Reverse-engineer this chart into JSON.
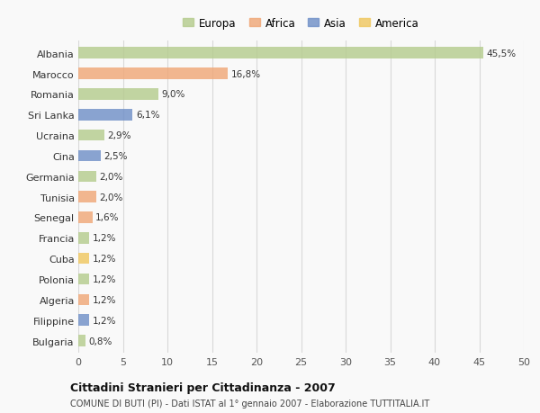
{
  "countries": [
    "Albania",
    "Marocco",
    "Romania",
    "Sri Lanka",
    "Ucraina",
    "Cina",
    "Germania",
    "Tunisia",
    "Senegal",
    "Francia",
    "Cuba",
    "Polonia",
    "Algeria",
    "Filippine",
    "Bulgaria"
  ],
  "values": [
    45.5,
    16.8,
    9.0,
    6.1,
    2.9,
    2.5,
    2.0,
    2.0,
    1.6,
    1.2,
    1.2,
    1.2,
    1.2,
    1.2,
    0.8
  ],
  "labels": [
    "45,5%",
    "16,8%",
    "9,0%",
    "6,1%",
    "2,9%",
    "2,5%",
    "2,0%",
    "2,0%",
    "1,6%",
    "1,2%",
    "1,2%",
    "1,2%",
    "1,2%",
    "1,2%",
    "0,8%"
  ],
  "colors": [
    "#b5cc8e",
    "#f0a878",
    "#b5cc8e",
    "#7090c8",
    "#b5cc8e",
    "#7090c8",
    "#b5cc8e",
    "#f0a878",
    "#f0a878",
    "#b5cc8e",
    "#f0c860",
    "#b5cc8e",
    "#f0a878",
    "#7090c8",
    "#b5cc8e"
  ],
  "legend": [
    {
      "label": "Europa",
      "color": "#b5cc8e"
    },
    {
      "label": "Africa",
      "color": "#f0a878"
    },
    {
      "label": "Asia",
      "color": "#7090c8"
    },
    {
      "label": "America",
      "color": "#f0c860"
    }
  ],
  "title": "Cittadini Stranieri per Cittadinanza - 2007",
  "subtitle": "COMUNE DI BUTI (PI) - Dati ISTAT al 1° gennaio 2007 - Elaborazione TUTTITALIA.IT",
  "xlim": [
    0,
    50
  ],
  "xticks": [
    0,
    5,
    10,
    15,
    20,
    25,
    30,
    35,
    40,
    45,
    50
  ],
  "bg_color": "#f9f9f9",
  "grid_color": "#d8d8d8",
  "bar_height": 0.55,
  "bar_alpha": 0.82
}
